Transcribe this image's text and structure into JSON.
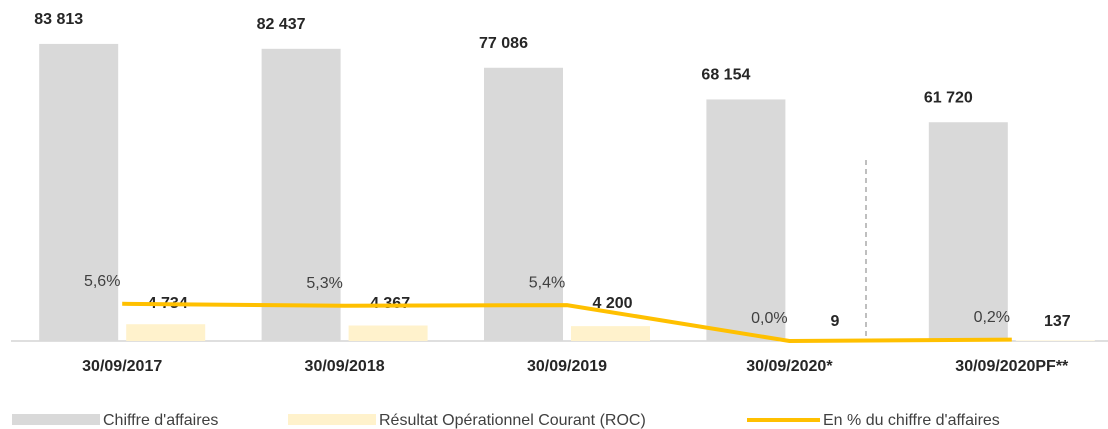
{
  "chart_data": {
    "type": "bar",
    "categories": [
      "30/09/2017",
      "30/09/2018",
      "30/09/2019",
      "30/09/2020*",
      "30/09/2020PF**"
    ],
    "series": [
      {
        "name": "Chiffre d'affaires",
        "type": "bar",
        "color": "#d9d9d9",
        "values": [
          83813,
          82437,
          77086,
          68154,
          61720
        ],
        "value_labels": [
          "83 813",
          "82 437",
          "77 086",
          "68 154",
          "61 720"
        ]
      },
      {
        "name": "Résultat Opérationnel Courant (ROC)",
        "type": "bar",
        "color": "#fff2cc",
        "values": [
          4734,
          4367,
          4200,
          9,
          137
        ],
        "value_labels": [
          "4 734",
          "4 367",
          "4 200",
          "9",
          "137"
        ]
      },
      {
        "name": "En % du chiffre d'affaires",
        "type": "line",
        "axis": "y2",
        "color": "#ffc000",
        "values": [
          5.6,
          5.3,
          5.4,
          0.0,
          0.2
        ],
        "value_labels": [
          "5,6%",
          "5,3%",
          "5,4%",
          "0,0%",
          "0,2%"
        ]
      }
    ],
    "ylim": [
      0,
      90000
    ],
    "y2lim": [
      0,
      48
    ],
    "legend": "bottom"
  }
}
